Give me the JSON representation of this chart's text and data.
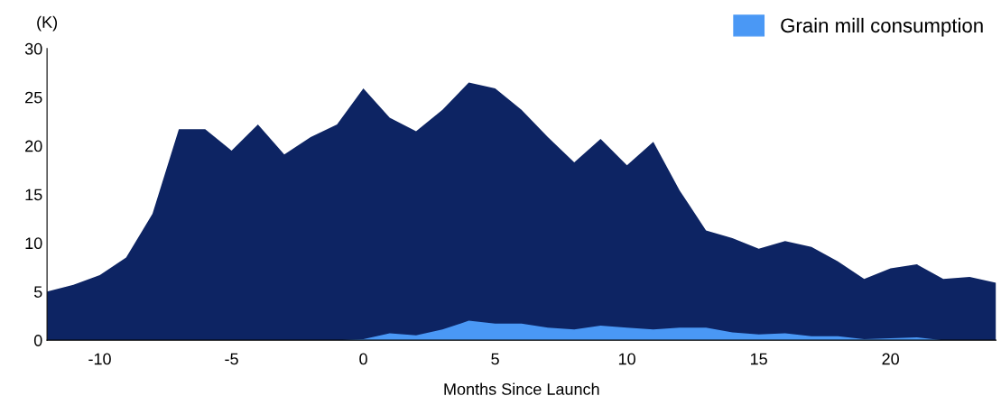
{
  "chart_data": {
    "type": "area",
    "xlabel": "Months Since Launch",
    "annotations": [
      "(K)"
    ],
    "x": [
      -12,
      -11,
      -10,
      -9,
      -8,
      -7,
      -6,
      -5,
      -4,
      -3,
      -2,
      -1,
      0,
      1,
      2,
      3,
      4,
      5,
      6,
      7,
      8,
      9,
      10,
      11,
      12,
      13,
      14,
      15,
      16,
      17,
      18,
      19,
      20,
      21,
      22,
      23,
      24
    ],
    "series": [
      {
        "color": "#0d2463",
        "values": [
          5.0,
          5.7,
          6.7,
          8.5,
          13.0,
          21.7,
          21.7,
          19.5,
          22.2,
          19.1,
          20.9,
          22.2,
          25.9,
          22.9,
          21.5,
          23.7,
          26.5,
          25.9,
          23.7,
          20.9,
          18.3,
          20.7,
          18.0,
          20.4,
          15.4,
          11.3,
          10.5,
          9.4,
          10.2,
          9.6,
          8.1,
          6.3,
          7.4,
          7.8,
          6.3,
          6.5,
          5.9
        ]
      },
      {
        "name": "Grain mill consumption",
        "color": "#4a98f5",
        "values": [
          0,
          0,
          0,
          0,
          0,
          0,
          0,
          0,
          0,
          0,
          0,
          0,
          0.1,
          0.7,
          0.5,
          1.1,
          2.0,
          1.7,
          1.7,
          1.3,
          1.1,
          1.5,
          1.3,
          1.1,
          1.3,
          1.3,
          0.8,
          0.6,
          0.7,
          0.4,
          0.4,
          0.1,
          0.2,
          0.3,
          0,
          0,
          0
        ]
      }
    ],
    "xlim": [
      -12,
      24
    ],
    "xticks": [
      -10,
      -5,
      0,
      5,
      10,
      15,
      20
    ],
    "ylim": [
      0,
      30
    ],
    "yticks": [
      0,
      5,
      10,
      15,
      20,
      25,
      30
    ],
    "grid": false,
    "legend": "top right"
  }
}
